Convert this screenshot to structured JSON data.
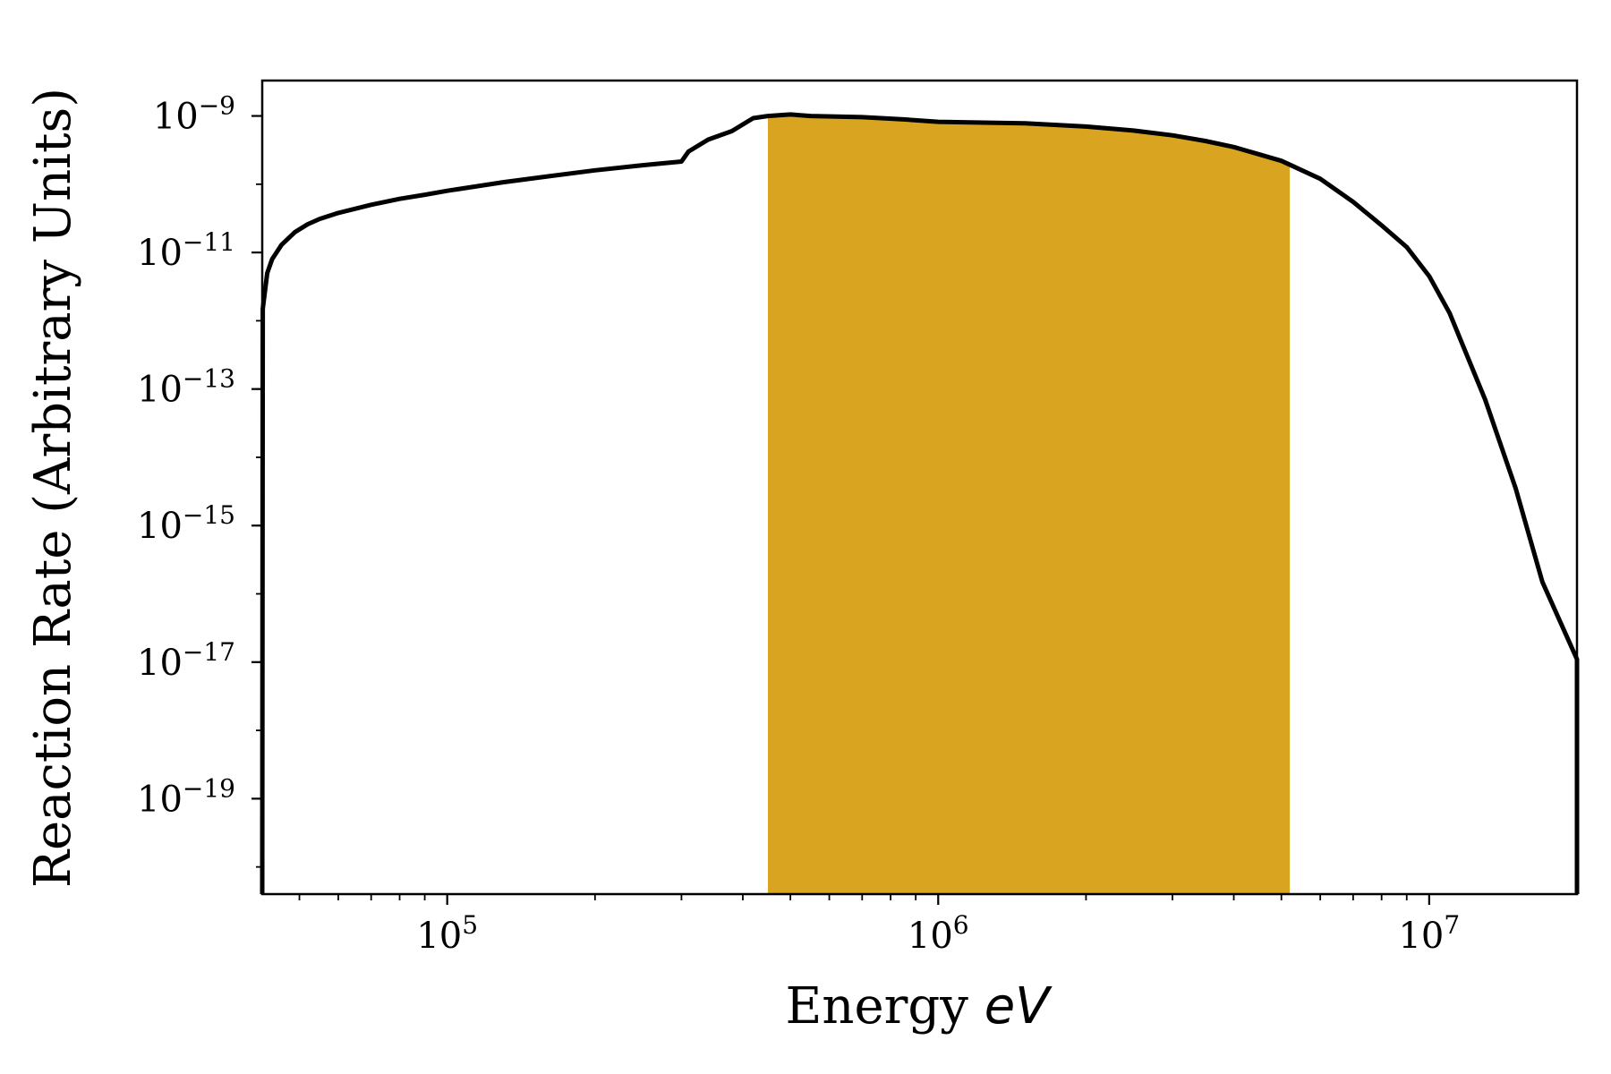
{
  "chart_data": {
    "type": "area",
    "title": "",
    "xlabel": "Energy",
    "xlabel_unit": "eV",
    "ylabel": "Reaction Rate (Arbitrary Units)",
    "xscale": "log",
    "yscale": "log",
    "xlim": [
      42000,
      20000000
    ],
    "ylim": [
      4e-21,
      3.3e-09
    ],
    "x_ticks": [
      {
        "value": 100000,
        "base": "10",
        "exp": "5"
      },
      {
        "value": 1000000,
        "base": "10",
        "exp": "6"
      },
      {
        "value": 10000000,
        "base": "10",
        "exp": "7"
      }
    ],
    "y_ticks": [
      {
        "value": 1e-09,
        "base": "10",
        "exp": "−9"
      },
      {
        "value": 1e-11,
        "base": "10",
        "exp": "−11"
      },
      {
        "value": 1e-13,
        "base": "10",
        "exp": "−13"
      },
      {
        "value": 1e-15,
        "base": "10",
        "exp": "−15"
      },
      {
        "value": 1e-17,
        "base": "10",
        "exp": "−17"
      },
      {
        "value": 1e-19,
        "base": "10",
        "exp": "−19"
      }
    ],
    "series": [
      {
        "line_color": "#000000",
        "points": [
          [
            42000,
            4e-21
          ],
          [
            42100,
            1.5e-12
          ],
          [
            43000,
            5e-12
          ],
          [
            44000,
            8e-12
          ],
          [
            46000,
            1.3e-11
          ],
          [
            49000,
            2e-11
          ],
          [
            52000,
            2.6e-11
          ],
          [
            55000,
            3.1e-11
          ],
          [
            60000,
            3.8e-11
          ],
          [
            70000,
            5e-11
          ],
          [
            80000,
            6.1e-11
          ],
          [
            90000,
            7e-11
          ],
          [
            100000,
            8e-11
          ],
          [
            130000,
            1.07e-10
          ],
          [
            160000,
            1.3e-10
          ],
          [
            200000,
            1.6e-10
          ],
          [
            250000,
            1.9e-10
          ],
          [
            300000,
            2.15e-10
          ],
          [
            310000,
            3e-10
          ],
          [
            340000,
            4.5e-10
          ],
          [
            380000,
            6e-10
          ],
          [
            420000,
            9.3e-10
          ],
          [
            450000,
            1e-09
          ],
          [
            500000,
            1.05e-09
          ],
          [
            550000,
            1e-09
          ],
          [
            700000,
            9.6e-10
          ],
          [
            850000,
            8.9e-10
          ],
          [
            1000000,
            8.2e-10
          ],
          [
            1200000,
            8e-10
          ],
          [
            1500000,
            7.8e-10
          ],
          [
            2000000,
            7e-10
          ],
          [
            2500000,
            6.1e-10
          ],
          [
            3000000,
            5.2e-10
          ],
          [
            3500000,
            4.3e-10
          ],
          [
            4000000,
            3.5e-10
          ],
          [
            5000000,
            2.2e-10
          ],
          [
            6000000,
            1.2e-10
          ],
          [
            7000000,
            5.5e-11
          ],
          [
            8000000,
            2.5e-11
          ],
          [
            9000000,
            1.2e-11
          ],
          [
            10000000,
            4.5e-12
          ],
          [
            11000000,
            1.3e-12
          ],
          [
            13000000,
            7e-14
          ],
          [
            15000000,
            3.5e-15
          ],
          [
            17000000,
            1.5e-16
          ],
          [
            20000000,
            1.1e-17
          ],
          [
            20000000,
            4e-21
          ]
        ]
      }
    ],
    "highlight_band": {
      "x_start": 450000,
      "x_end": 5200000,
      "color": "#D9A521"
    }
  }
}
